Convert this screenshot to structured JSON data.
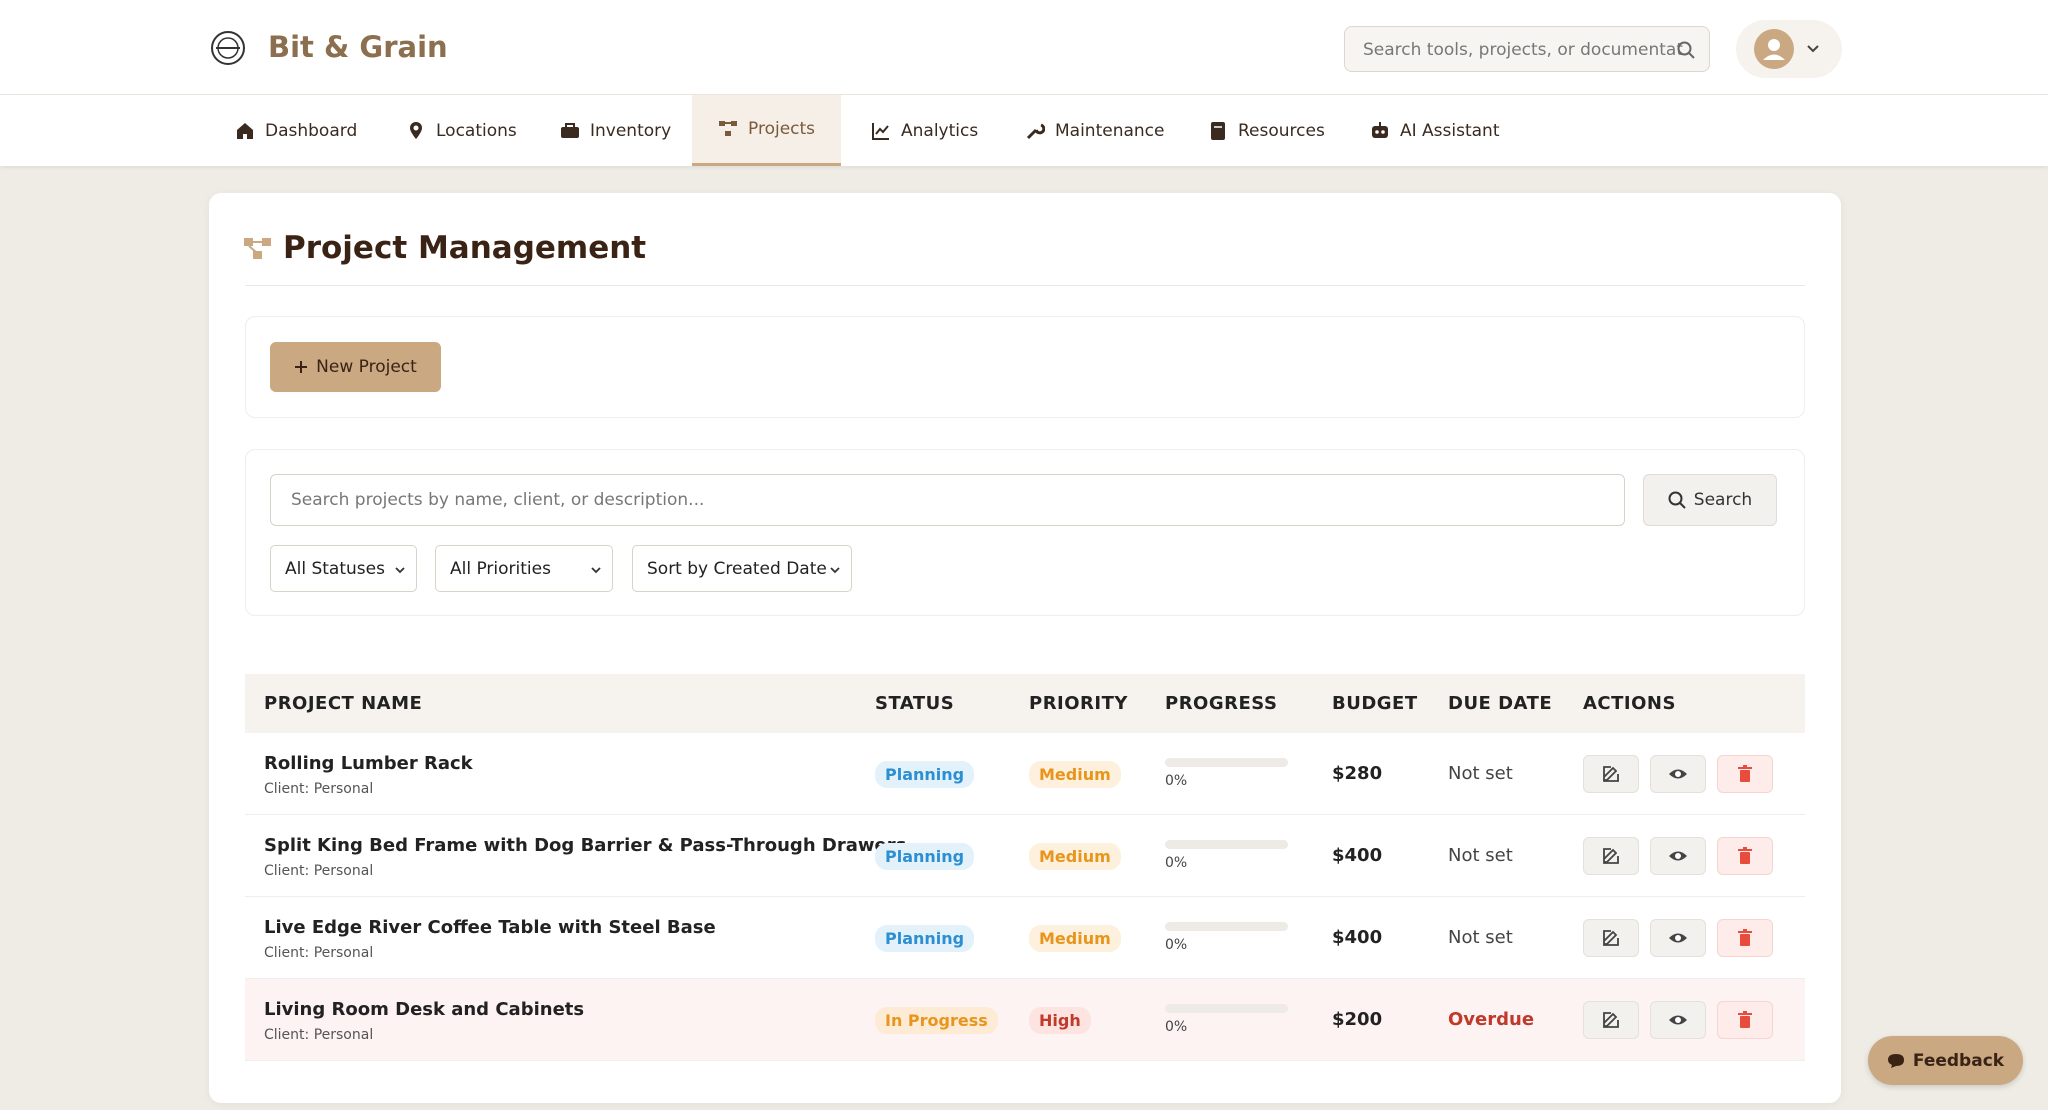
{
  "header": {
    "brand": "Bit & Grain",
    "search_placeholder": "Search tools, projects, or documentat"
  },
  "nav": [
    "Dashboard",
    "Locations",
    "Inventory",
    "Projects",
    "Analytics",
    "Maintenance",
    "Resources",
    "AI Assistant"
  ],
  "page": {
    "title": "Project Management",
    "new_project": "New Project",
    "search_placeholder": "Search projects by name, client, or description...",
    "search_button": "Search",
    "filters": [
      "All Statuses",
      "All Priorities",
      "Sort by Created Date"
    ]
  },
  "table": {
    "columns": [
      "PROJECT NAME",
      "STATUS",
      "PRIORITY",
      "PROGRESS",
      "BUDGET",
      "DUE DATE",
      "ACTIONS"
    ],
    "rows": [
      {
        "name": "Rolling Lumber Rack",
        "client": "Client: Personal",
        "status": "Planning",
        "priority": "Medium",
        "progress": "0%",
        "budget": "$280",
        "due": "Not set"
      },
      {
        "name": "Split King Bed Frame with Dog Barrier & Pass-Through Drawers",
        "client": "Client: Personal",
        "status": "Planning",
        "priority": "Medium",
        "progress": "0%",
        "budget": "$400",
        "due": "Not set"
      },
      {
        "name": "Live Edge River Coffee Table with Steel Base",
        "client": "Client: Personal",
        "status": "Planning",
        "priority": "Medium",
        "progress": "0%",
        "budget": "$400",
        "due": "Not set"
      },
      {
        "name": "Living Room Desk and Cabinets",
        "client": "Client: Personal",
        "status": "In Progress",
        "priority": "High",
        "progress": "0%",
        "budget": "$200",
        "due": "Overdue"
      }
    ]
  },
  "feedback": "Feedback"
}
